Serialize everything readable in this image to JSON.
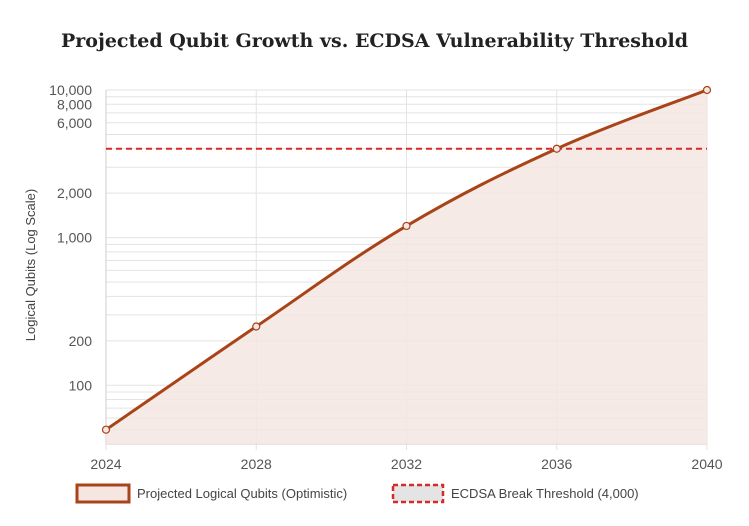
{
  "chart_data": {
    "type": "line",
    "title": "Projected Qubit Growth vs. ECDSA Vulnerability Threshold",
    "xlabel": "",
    "ylabel": "Logical Qubits (Log Scale)",
    "y_scale": "log",
    "x": [
      2024,
      2028,
      2032,
      2036,
      2040
    ],
    "x_tick_labels": [
      "2024",
      "2028",
      "2032",
      "2036",
      "2040"
    ],
    "xlim": [
      2024,
      2040
    ],
    "ylim": [
      40,
      10000
    ],
    "y_ticks": [
      {
        "value": 100,
        "label": "100"
      },
      {
        "value": 200,
        "label": "200"
      },
      {
        "value": 1000,
        "label": "1,000"
      },
      {
        "value": 2000,
        "label": "2,000"
      },
      {
        "value": 6000,
        "label": "6,000"
      },
      {
        "value": 8000,
        "label": "8,000"
      },
      {
        "value": 10000,
        "label": "10,000"
      }
    ],
    "y_grid": [
      40,
      50,
      60,
      70,
      80,
      90,
      100,
      200,
      300,
      400,
      500,
      600,
      700,
      800,
      900,
      1000,
      2000,
      3000,
      4000,
      5000,
      6000,
      7000,
      8000,
      9000,
      10000
    ],
    "grid": true,
    "legend_position": "bottom",
    "series": [
      {
        "name": "Projected Logical Qubits (Optimistic)",
        "values": [
          50,
          250,
          1200,
          4000,
          10000
        ],
        "color": "#a84418",
        "fill": "#f5e6e2"
      }
    ],
    "reference_lines": [
      {
        "name": "ECDSA Break Threshold (4,000)",
        "value": 4000,
        "color": "#d42a2a",
        "style": "dashed"
      }
    ]
  }
}
